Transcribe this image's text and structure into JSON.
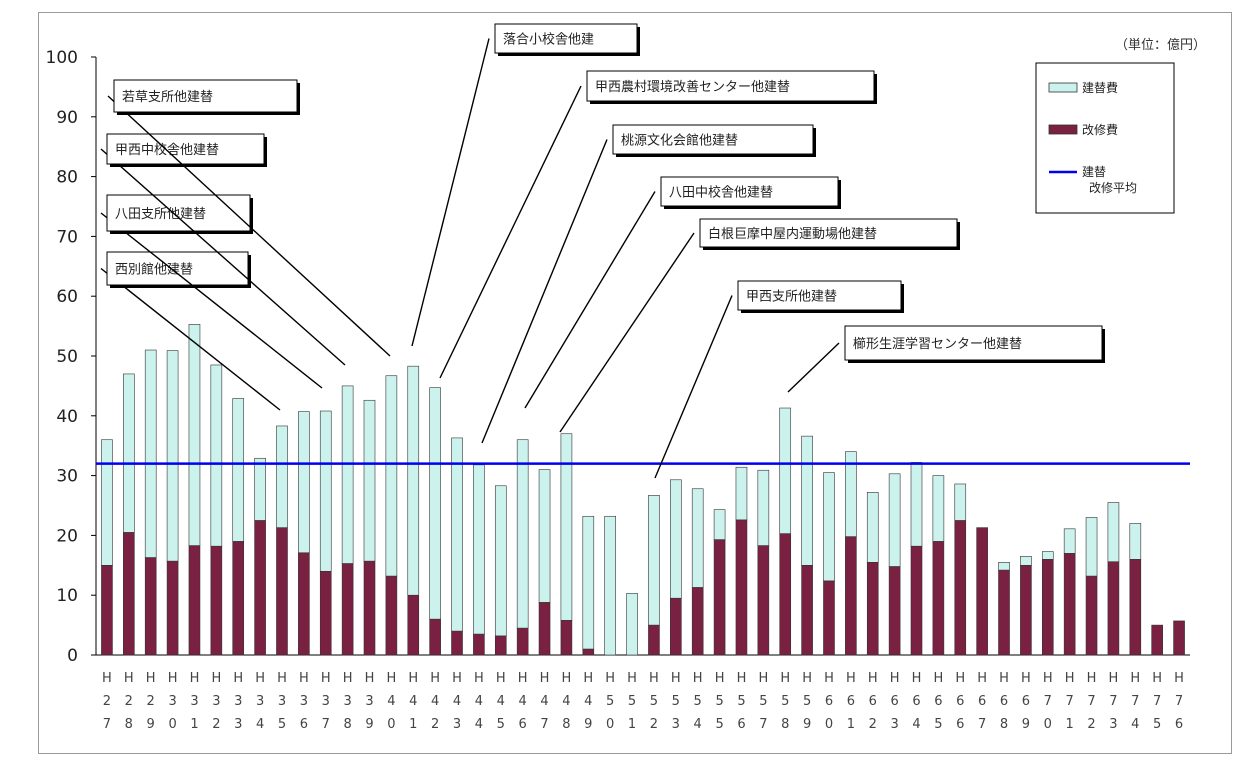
{
  "chart_data": {
    "type": "bar",
    "stacked": true,
    "unit_label": "（単位：億円）",
    "ylim": [
      0,
      100
    ],
    "yticks": [
      0,
      10,
      20,
      30,
      40,
      50,
      60,
      70,
      80,
      90,
      100
    ],
    "grid": false,
    "legend_position": "top-right",
    "categories": [
      [
        "H",
        "2",
        "7"
      ],
      [
        "H",
        "2",
        "8"
      ],
      [
        "H",
        "2",
        "9"
      ],
      [
        "H",
        "3",
        "0"
      ],
      [
        "H",
        "3",
        "1"
      ],
      [
        "H",
        "3",
        "2"
      ],
      [
        "H",
        "3",
        "3"
      ],
      [
        "H",
        "3",
        "4"
      ],
      [
        "H",
        "3",
        "5"
      ],
      [
        "H",
        "3",
        "6"
      ],
      [
        "H",
        "3",
        "7"
      ],
      [
        "H",
        "3",
        "8"
      ],
      [
        "H",
        "3",
        "9"
      ],
      [
        "H",
        "4",
        "0"
      ],
      [
        "H",
        "4",
        "1"
      ],
      [
        "H",
        "4",
        "2"
      ],
      [
        "H",
        "4",
        "3"
      ],
      [
        "H",
        "4",
        "4"
      ],
      [
        "H",
        "4",
        "5"
      ],
      [
        "H",
        "4",
        "6"
      ],
      [
        "H",
        "4",
        "7"
      ],
      [
        "H",
        "4",
        "8"
      ],
      [
        "H",
        "4",
        "9"
      ],
      [
        "H",
        "5",
        "0"
      ],
      [
        "H",
        "5",
        "1"
      ],
      [
        "H",
        "5",
        "2"
      ],
      [
        "H",
        "5",
        "3"
      ],
      [
        "H",
        "5",
        "4"
      ],
      [
        "H",
        "5",
        "5"
      ],
      [
        "H",
        "5",
        "6"
      ],
      [
        "H",
        "5",
        "7"
      ],
      [
        "H",
        "5",
        "8"
      ],
      [
        "H",
        "5",
        "9"
      ],
      [
        "H",
        "6",
        "0"
      ],
      [
        "H",
        "6",
        "1"
      ],
      [
        "H",
        "6",
        "2"
      ],
      [
        "H",
        "6",
        "3"
      ],
      [
        "H",
        "6",
        "4"
      ],
      [
        "H",
        "6",
        "5"
      ],
      [
        "H",
        "6",
        "6"
      ],
      [
        "H",
        "6",
        "7"
      ],
      [
        "H",
        "6",
        "8"
      ],
      [
        "H",
        "6",
        "9"
      ],
      [
        "H",
        "7",
        "0"
      ],
      [
        "H",
        "7",
        "1"
      ],
      [
        "H",
        "7",
        "2"
      ],
      [
        "H",
        "7",
        "3"
      ],
      [
        "H",
        "7",
        "4"
      ],
      [
        "H",
        "7",
        "5"
      ],
      [
        "H",
        "7",
        "6"
      ]
    ],
    "series": [
      {
        "name": "改修費",
        "color": "#7a2040",
        "values": [
          15,
          20.5,
          16.3,
          15.7,
          18.3,
          18.2,
          19,
          22.5,
          21.3,
          17.1,
          14,
          15.3,
          15.7,
          13.2,
          10,
          6,
          4,
          3.5,
          3.2,
          4.5,
          8.8,
          5.8,
          1,
          0,
          0,
          5,
          9.5,
          11.3,
          19.3,
          22.6,
          18.3,
          20.3,
          15,
          12.4,
          19.8,
          15.5,
          14.8,
          18.2,
          19,
          22.5,
          21.3,
          14.2,
          15,
          16,
          17,
          13.2,
          15.6,
          16,
          5,
          5.7
        ]
      },
      {
        "name": "建替費",
        "color": "#ccf2ee",
        "values": [
          21,
          26.5,
          34.7,
          35.2,
          37,
          30.3,
          23.9,
          10.4,
          17,
          23.6,
          26.8,
          29.7,
          26.9,
          33.5,
          38.3,
          38.7,
          32.3,
          28.3,
          25.1,
          31.5,
          22.2,
          31.2,
          22.2,
          23.2,
          10.3,
          21.7,
          19.8,
          16.5,
          5,
          8.8,
          12.6,
          21,
          21.6,
          18.1,
          14.2,
          11.7,
          15.5,
          14,
          11,
          6.1,
          0,
          1.3,
          1.5,
          1.3,
          4.1,
          9.8,
          9.9,
          6,
          0,
          0
        ]
      }
    ],
    "average_line": {
      "name": "建替\n改修平均",
      "value": 32,
      "color": "#0000ee"
    },
    "annotations": [
      {
        "text": "西別館他建替",
        "bar": 8
      },
      {
        "text": "八田支所他建替",
        "bar": 10
      },
      {
        "text": "甲西中校舎他建替",
        "bar": 11
      },
      {
        "text": "若草支所他建替",
        "bar": 13
      },
      {
        "text": "落合小校舎他建",
        "bar": 14
      },
      {
        "text": "甲西農村環境改善センター他建替",
        "bar": 15
      },
      {
        "text": "桃源文化会館他建替",
        "bar": 17
      },
      {
        "text": "八田中校舎他建替",
        "bar": 19
      },
      {
        "text": "白根巨摩中屋内運動場他建替",
        "bar": 21
      },
      {
        "text": "甲西支所他建替",
        "bar": 25
      },
      {
        "text": "櫛形生涯学習センター他建替",
        "bar": 31
      }
    ],
    "legend": [
      {
        "label": "建替費",
        "kind": "box",
        "color": "#ccf2ee"
      },
      {
        "label": "改修費",
        "kind": "box",
        "color": "#7a2040"
      },
      {
        "label": "建替\n改修平均",
        "kind": "line",
        "color": "#0000ee"
      }
    ]
  }
}
